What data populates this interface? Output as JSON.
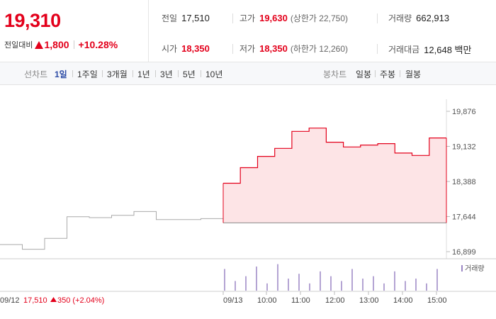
{
  "summary": {
    "current_price": "19,310",
    "change_label": "전일대비",
    "change_value": "1,800",
    "change_rate": "+10.28%",
    "prev_close_label": "전일",
    "prev_close": "17,510",
    "high_label": "고가",
    "high": "19,630",
    "upper_limit_label": "(상한가 22,750)",
    "volume_label": "거래량",
    "volume": "662,913",
    "open_label": "시가",
    "open": "18,350",
    "low_label": "저가",
    "low": "18,350",
    "lower_limit_label": "(하한가 12,260)",
    "amount_label": "거래대금",
    "amount": "12,648 백만"
  },
  "tabs": {
    "line_group_label": "선차트",
    "line_items": [
      "1일",
      "1주일",
      "3개월",
      "1년",
      "3년",
      "5년",
      "10년"
    ],
    "active_line_index": 0,
    "candle_group_label": "봉차트",
    "candle_items": [
      "일봉",
      "주봉",
      "월봉"
    ]
  },
  "colors": {
    "up": "#e3001b",
    "active_tab": "#2b4aa5",
    "area_fill": "#fde4e6",
    "prev_line": "#aaaaaa"
  },
  "chart_data": {
    "type": "line",
    "y_ticks": [
      "19,876",
      "19,132",
      "18,388",
      "17,644",
      "16,899"
    ],
    "y_tick_values": [
      19876,
      19132,
      18388,
      17644,
      16899
    ],
    "ylim": [
      16750,
      20100
    ],
    "x_labels": [
      "09/12",
      "09/13",
      "10:00",
      "11:00",
      "12:00",
      "13:00",
      "14:00",
      "15:00"
    ],
    "prev_day": {
      "date_label": "09/12",
      "close_text": "17,510",
      "change_text": "350 (+2.04%)",
      "values": [
        17050,
        16950,
        17180,
        17640,
        17620,
        17670,
        17750,
        17580,
        17580,
        17600
      ]
    },
    "today": {
      "values": [
        18350,
        18680,
        18920,
        19090,
        19450,
        19520,
        19220,
        19120,
        19160,
        19190,
        18990,
        18940,
        19310
      ],
      "base": 17510
    },
    "volume_label": "거래량",
    "volume_today": [
      0.9,
      0.4,
      0.6,
      1.0,
      0.3,
      1.1,
      0.5,
      0.7,
      0.3,
      0.8,
      0.6,
      0.4,
      0.9,
      0.5,
      0.6,
      0.3,
      0.8,
      0.4,
      0.5,
      0.3,
      0.9
    ]
  }
}
